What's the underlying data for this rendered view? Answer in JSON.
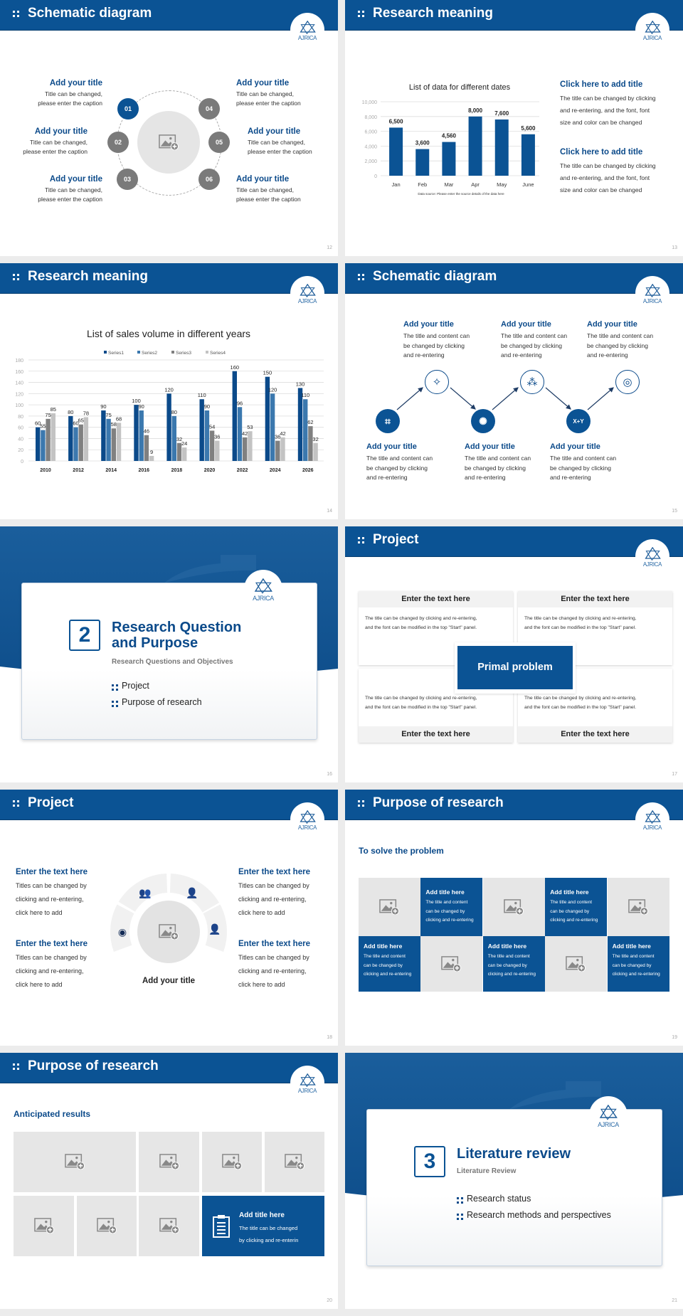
{
  "brand": {
    "logo_text": "AJRICA",
    "primary": "#0b5394",
    "dark_text": "#0b4a8a",
    "gray_node": "#7a7a7a",
    "placeholder": "#e6e6e6"
  },
  "s12": {
    "number": "12",
    "title": "Schematic diagram",
    "items": [
      {
        "num": "01",
        "title": "Add your title",
        "line1": "Title can be changed,",
        "line2": "please enter the caption"
      },
      {
        "num": "02",
        "title": "Add your title",
        "line1": "Title can be changed,",
        "line2": "please enter the caption"
      },
      {
        "num": "03",
        "title": "Add your title",
        "line1": "Title can be changed,",
        "line2": "please enter the caption"
      },
      {
        "num": "04",
        "title": "Add your title",
        "line1": "Title can be changed,",
        "line2": "please enter the caption"
      },
      {
        "num": "05",
        "title": "Add your title",
        "line1": "Title can be changed,",
        "line2": "please enter the caption"
      },
      {
        "num": "06",
        "title": "Add your title",
        "line1": "Title can be changed,",
        "line2": "please enter the caption"
      }
    ]
  },
  "s13": {
    "number": "13",
    "title": "Research meaning",
    "side": [
      {
        "title": "Click here to add title",
        "lines": [
          "The title can be changed by clicking",
          "and re-entering, and the font, font",
          "size and color can be changed"
        ]
      },
      {
        "title": "Click here to add title",
        "lines": [
          "The title can be changed by clicking",
          "and re-entering, and the font, font",
          "size and color can be changed"
        ]
      }
    ]
  },
  "s14": {
    "number": "14",
    "title": "Research meaning"
  },
  "s15": {
    "number": "15",
    "title": "Schematic diagram",
    "top": [
      {
        "title": "Add your title",
        "lines": [
          "The title and content can",
          "be changed by clicking",
          "and re-entering"
        ],
        "icon": "sparkle-icon"
      },
      {
        "title": "Add your title",
        "lines": [
          "The title and content can",
          "be changed by clicking",
          "and re-entering"
        ],
        "icon": "network-icon"
      },
      {
        "title": "Add your title",
        "lines": [
          "The title and content can",
          "be changed by clicking",
          "and re-entering"
        ],
        "icon": "target-icon"
      }
    ],
    "bottom": [
      {
        "title": "Add your title",
        "lines": [
          "The title and content can",
          "be changed by clicking",
          "and re-entering"
        ],
        "icon": "cube-network-icon"
      },
      {
        "title": "Add your title",
        "lines": [
          "The title and content can",
          "be changed by clicking",
          "and re-entering"
        ],
        "icon": "atom-icon"
      },
      {
        "title": "Add your title",
        "lines": [
          "The title and content can",
          "be changed by clicking",
          "and re-entering"
        ],
        "icon": "formula-icon",
        "icon_text": "X+Y"
      }
    ]
  },
  "s16": {
    "number": "16",
    "section_num": "2",
    "title_line1": "Research Question",
    "title_line2": "and Purpose",
    "subtitle": "Research Questions and Objectives",
    "bullets": [
      "Project",
      "Purpose of research"
    ]
  },
  "s17": {
    "number": "17",
    "title": "Project",
    "center": "Primal problem",
    "boxes": [
      {
        "heading": "Enter the text here",
        "lines": [
          "The title can be changed by clicking and re-entering,",
          "and the font can be modified in the top \"Start\" panel."
        ]
      },
      {
        "heading": "Enter the text here",
        "lines": [
          "The title can be changed by clicking and re-entering,",
          "and the font can be modified in the top \"Start\" panel."
        ]
      },
      {
        "heading": "Enter the text here",
        "lines": [
          "The title can be changed by clicking and re-entering,",
          "and the font can be modified in the top \"Start\" panel."
        ]
      },
      {
        "heading": "Enter the text here",
        "lines": [
          "The title can be changed by clicking and re-entering,",
          "and the font can be modified in the top \"Start\" panel."
        ]
      }
    ]
  },
  "s18": {
    "number": "18",
    "title": "Project",
    "center_title": "Add your title",
    "items": [
      {
        "title": "Enter the text here",
        "lines": [
          "Titles can be changed by",
          "clicking and re-entering,",
          "click here to add"
        ]
      },
      {
        "title": "Enter the text here",
        "lines": [
          "Titles can be changed by",
          "clicking and re-entering,",
          "click here to add"
        ]
      },
      {
        "title": "Enter the text here",
        "lines": [
          "Titles can be changed by",
          "clicking and re-entering,",
          "click here to add"
        ]
      },
      {
        "title": "Enter the text here",
        "lines": [
          "Titles can be changed by",
          "clicking and re-entering,",
          "click here to add"
        ]
      }
    ],
    "icons": [
      "team-icon",
      "support-agent-icon",
      "user-circle-icon",
      "reader-icon"
    ]
  },
  "s19": {
    "number": "19",
    "title": "Purpose of research",
    "subtitle": "To solve the problem",
    "cards": [
      {
        "title": "Add title here",
        "lines": [
          "The title and content",
          "can be changed by",
          "clicking and re-entering"
        ]
      },
      {
        "title": "Add title here",
        "lines": [
          "The title and content",
          "can be changed by",
          "clicking and re-entering"
        ]
      },
      {
        "title": "Add title here",
        "lines": [
          "The title and content",
          "can be changed by",
          "clicking and re-entering"
        ]
      },
      {
        "title": "Add title here",
        "lines": [
          "The title and content",
          "can be changed by",
          "clicking and re-entering"
        ]
      },
      {
        "title": "Add title here",
        "lines": [
          "The title and content",
          "can be changed by",
          "clicking and re-entering"
        ]
      }
    ]
  },
  "s20": {
    "number": "20",
    "title": "Purpose of research",
    "subtitle": "Anticipated results",
    "card": {
      "title": "Add title here",
      "lines": [
        "The title can be changed",
        "by clicking and re-enterin"
      ]
    }
  },
  "s21": {
    "number": "21",
    "section_num": "3",
    "title_line1": "Literature review",
    "subtitle": "Literature Review",
    "bullets": [
      "Research status",
      "Research methods and perspectives"
    ]
  },
  "chart_data": [
    {
      "type": "bar",
      "title": "List of data for different dates",
      "categories": [
        "Jan",
        "Feb",
        "Mar",
        "Apr",
        "May",
        "June"
      ],
      "values": [
        6500,
        3600,
        4560,
        8000,
        7600,
        5600
      ],
      "data_labels": [
        "6,500",
        "3,600",
        "4,560",
        "8,000",
        "7,600",
        "5,600"
      ],
      "yticks": [
        "0",
        "2,000",
        "4,000",
        "6,000",
        "8,000",
        "10,000"
      ],
      "ylim": [
        0,
        10000
      ],
      "source_note": "Data source: Please enter the source details of the data here",
      "color": "#0b5394",
      "grid": true
    },
    {
      "type": "bar",
      "title": "List of sales volume in different years",
      "categories": [
        "2010",
        "2012",
        "2014",
        "2016",
        "2018",
        "2020",
        "2022",
        "2024",
        "2026"
      ],
      "series": [
        {
          "name": "Series1",
          "values": [
            60,
            80,
            90,
            100,
            120,
            110,
            160,
            150,
            130
          ],
          "color": "#0b4a8a"
        },
        {
          "name": "Series2",
          "values": [
            55,
            60,
            75,
            90,
            80,
            90,
            96,
            120,
            110
          ],
          "color": "#3b78ae"
        },
        {
          "name": "Series3",
          "values": [
            75,
            65,
            58,
            46,
            32,
            54,
            42,
            36,
            62
          ],
          "color": "#808080"
        },
        {
          "name": "Series4",
          "values": [
            85,
            78,
            68,
            9,
            24,
            36,
            53,
            42,
            32
          ],
          "color": "#c3c3c3"
        }
      ],
      "yticks": [
        "0",
        "20",
        "40",
        "60",
        "80",
        "100",
        "120",
        "140",
        "160",
        "180"
      ],
      "ylim": [
        0,
        180
      ],
      "legend": "top",
      "grid": true
    }
  ]
}
